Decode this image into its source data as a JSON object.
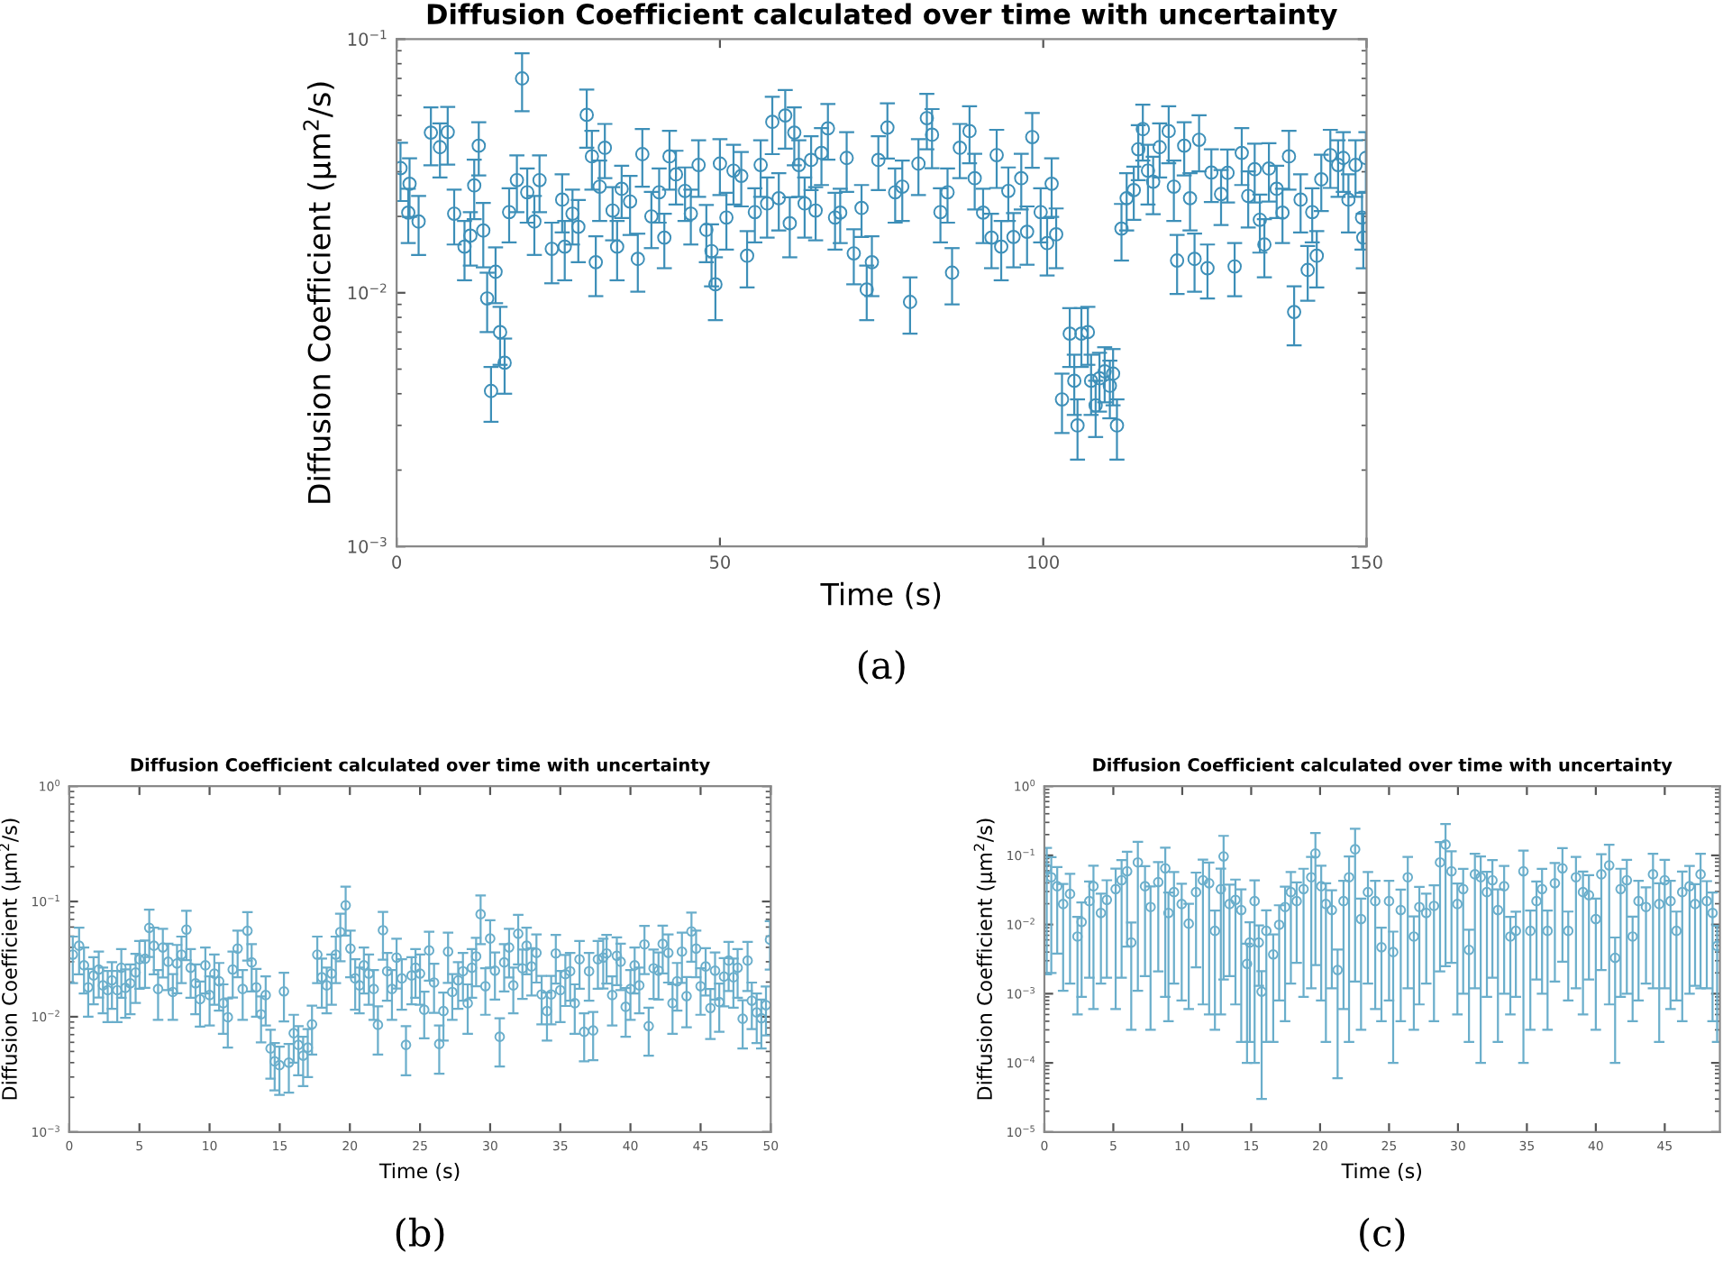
{
  "chart_data": [
    {
      "type": "scatter",
      "title": "Diffusion Coefficient calculated over time with uncertainty",
      "xlabel": "Time (s)",
      "ylabel": "Diffusion Coefficient (μm$^{2}$/s)",
      "log": "y",
      "marker": "circle",
      "xlim": [
        0,
        150
      ],
      "xticks": [
        0,
        50,
        100,
        150
      ],
      "ylim": [
        0.001,
        0.1
      ],
      "yticks": [
        {
          "value": 0.001,
          "label": "10$^{−3}$"
        },
        {
          "value": 0.01,
          "label": "10$^{−2}$"
        },
        {
          "value": 0.1,
          "label": "10$^{−1}$"
        }
      ],
      "annotations": [
        "(a)"
      ],
      "series": [
        {
          "color": "#3d8fb8",
          "x": [
            0.6,
            1.8,
            2.0,
            3.4,
            5.3,
            6.7,
            7.9,
            8.9,
            10.5,
            11.4,
            12.0,
            12.7,
            13.4,
            14.0,
            14.6,
            15.3,
            16.0,
            16.7,
            17.4,
            18.6,
            19.4,
            20.2,
            21.3,
            22.1,
            24.0,
            25.6,
            26.0,
            27.2,
            28.1,
            29.4,
            30.2,
            30.8,
            31.4,
            32.2,
            33.4,
            34.1,
            34.8,
            36.1,
            37.3,
            38.0,
            39.4,
            40.6,
            41.4,
            42.2,
            43.2,
            44.6,
            45.5,
            46.7,
            47.9,
            48.7,
            49.3,
            50.0,
            51.0,
            52.1,
            53.3,
            54.2,
            55.4,
            56.3,
            57.3,
            58.1,
            59.1,
            60.1,
            60.8,
            61.5,
            62.2,
            63.1,
            64.1,
            64.8,
            65.7,
            66.7,
            67.8,
            68.6,
            69.6,
            70.7,
            71.9,
            72.7,
            73.5,
            74.5,
            75.9,
            77.1,
            78.2,
            79.4,
            80.7,
            82.0,
            82.8,
            84.1,
            85.2,
            85.9,
            87.1,
            88.6,
            89.4,
            90.7,
            92.0,
            92.8,
            93.5,
            94.6,
            95.4,
            96.6,
            97.5,
            98.3,
            99.6,
            100.6,
            101.3,
            102.0,
            102.9,
            104.1,
            104.8,
            105.3,
            105.9,
            106.9,
            107.4,
            108.1,
            108.7,
            109.5,
            110.3,
            110.8,
            111.4,
            112.1,
            112.9,
            114.0,
            114.7,
            115.4,
            116.2,
            117.0,
            118.0,
            119.4,
            120.2,
            120.7,
            121.8,
            122.7,
            123.4,
            124.1,
            125.4,
            126.0,
            127.5,
            128.5,
            129.6,
            130.7,
            131.7,
            132.7,
            133.5,
            134.2,
            134.9,
            136.1,
            137.0,
            138.0,
            138.8,
            139.8,
            140.9,
            141.6,
            142.3,
            143.0,
            144.4,
            145.6,
            146.4,
            147.2,
            148.3,
            149.3,
            149.5,
            149.9
          ],
          "values": [
            0.031,
            0.0207,
            0.0269,
            0.0191,
            0.0428,
            0.0375,
            0.043,
            0.0205,
            0.0152,
            0.0168,
            0.0265,
            0.038,
            0.0176,
            0.0095,
            0.0041,
            0.0121,
            0.007,
            0.0053,
            0.0208,
            0.0278,
            0.07,
            0.0249,
            0.0191,
            0.0278,
            0.0149,
            0.0233,
            0.0152,
            0.0205,
            0.0182,
            0.0503,
            0.0345,
            0.0132,
            0.0262,
            0.0373,
            0.0211,
            0.0152,
            0.0257,
            0.0229,
            0.0136,
            0.0352,
            0.02,
            0.0249,
            0.0165,
            0.0345,
            0.0293,
            0.0252,
            0.0205,
            0.0319,
            0.0177,
            0.0146,
            0.0108,
            0.0323,
            0.0198,
            0.0303,
            0.0289,
            0.014,
            0.0208,
            0.0319,
            0.0225,
            0.0472,
            0.0236,
            0.05,
            0.0188,
            0.0428,
            0.0319,
            0.0225,
            0.0334,
            0.0211,
            0.0356,
            0.0445,
            0.0198,
            0.0207,
            0.034,
            0.0143,
            0.0216,
            0.0103,
            0.0132,
            0.0334,
            0.0448,
            0.0249,
            0.0262,
            0.0092,
            0.0323,
            0.0488,
            0.042,
            0.0208,
            0.0249,
            0.012,
            0.0373,
            0.0434,
            0.0283,
            0.0207,
            0.0165,
            0.0349,
            0.0152,
            0.0252,
            0.0166,
            0.0283,
            0.0174,
            0.0411,
            0.0208,
            0.0157,
            0.0269,
            0.017,
            0.0038,
            0.0069,
            0.0045,
            0.003,
            0.0069,
            0.007,
            0.0045,
            0.0036,
            0.0046,
            0.0049,
            0.0043,
            0.0048,
            0.003,
            0.0179,
            0.0236,
            0.0254,
            0.0368,
            0.0442,
            0.0303,
            0.0274,
            0.0375,
            0.0434,
            0.0262,
            0.0134,
            0.038,
            0.0236,
            0.0136,
            0.0401,
            0.0125,
            0.0298,
            0.0245,
            0.0297,
            0.0127,
            0.0356,
            0.0241,
            0.0307,
            0.0194,
            0.0155,
            0.0309,
            0.0257,
            0.0207,
            0.0345,
            0.0084,
            0.0233,
            0.0123,
            0.0208,
            0.014,
            0.028,
            0.0349,
            0.0319,
            0.034,
            0.0233,
            0.0319,
            0.0198,
            0.0165,
            0.034
          ],
          "errors": [
            0.008,
            0.005,
            0.007,
            0.005,
            0.011,
            0.009,
            0.011,
            0.005,
            0.004,
            0.004,
            0.007,
            0.009,
            0.005,
            0.0025,
            0.001,
            0.003,
            0.0018,
            0.0013,
            0.005,
            0.007,
            0.018,
            0.006,
            0.005,
            0.007,
            0.004,
            0.006,
            0.004,
            0.005,
            0.005,
            0.013,
            0.009,
            0.0035,
            0.007,
            0.009,
            0.005,
            0.004,
            0.006,
            0.006,
            0.0035,
            0.009,
            0.005,
            0.006,
            0.004,
            0.009,
            0.007,
            0.006,
            0.005,
            0.008,
            0.0045,
            0.004,
            0.003,
            0.008,
            0.005,
            0.008,
            0.007,
            0.0035,
            0.005,
            0.008,
            0.006,
            0.012,
            0.006,
            0.013,
            0.005,
            0.011,
            0.008,
            0.006,
            0.008,
            0.005,
            0.009,
            0.011,
            0.005,
            0.005,
            0.009,
            0.0035,
            0.005,
            0.0025,
            0.0035,
            0.008,
            0.011,
            0.006,
            0.007,
            0.0023,
            0.008,
            0.012,
            0.011,
            0.005,
            0.006,
            0.003,
            0.009,
            0.011,
            0.007,
            0.005,
            0.004,
            0.009,
            0.004,
            0.006,
            0.004,
            0.007,
            0.0045,
            0.01,
            0.005,
            0.004,
            0.007,
            0.0045,
            0.001,
            0.0018,
            0.0012,
            0.0008,
            0.0018,
            0.0018,
            0.0012,
            0.0009,
            0.0012,
            0.0012,
            0.0011,
            0.0012,
            0.0008,
            0.0045,
            0.006,
            0.006,
            0.009,
            0.011,
            0.008,
            0.007,
            0.009,
            0.011,
            0.007,
            0.0035,
            0.009,
            0.006,
            0.0035,
            0.01,
            0.003,
            0.007,
            0.006,
            0.007,
            0.003,
            0.009,
            0.006,
            0.008,
            0.005,
            0.004,
            0.008,
            0.006,
            0.005,
            0.009,
            0.0022,
            0.006,
            0.003,
            0.005,
            0.0035,
            0.007,
            0.009,
            0.008,
            0.009,
            0.006,
            0.008,
            0.005,
            0.004,
            0.009
          ]
        }
      ]
    },
    {
      "type": "scatter",
      "title": "Diffusion Coefficient calculated over time with uncertainty",
      "xlabel": "Time (s)",
      "ylabel": "Diffusion Coefficient (μm$^{2}$/s)",
      "log": "y",
      "marker": "circle",
      "xlim": [
        0,
        50
      ],
      "xticks": [
        0,
        5,
        10,
        15,
        20,
        25,
        30,
        35,
        40,
        45,
        50
      ],
      "ylim": [
        0.001,
        1
      ],
      "yticks": [
        {
          "value": 0.001,
          "label": "10$^{−3}$"
        },
        {
          "value": 0.01,
          "label": "10$^{−2}$"
        },
        {
          "value": 0.1,
          "label": "10$^{−1}$"
        },
        {
          "value": 1,
          "label": "10$^{0}$"
        }
      ],
      "annotations": [
        "(b)"
      ],
      "series": [
        {
          "color": "#6aaecb",
          "x": [
            0.25,
            0.7,
            1.05,
            1.35,
            1.73,
            2.1,
            2.4,
            2.74,
            3.04,
            3.42,
            3.71,
            4.0,
            4.35,
            4.73,
            5.0,
            5.4,
            5.7,
            6.03,
            6.33,
            6.67,
            7.05,
            7.38,
            7.68,
            8.0,
            8.35,
            8.65,
            9.0,
            9.32,
            9.7,
            10.0,
            10.34,
            10.68,
            10.97,
            11.3,
            11.65,
            12.0,
            12.36,
            12.7,
            13.0,
            13.33,
            13.67,
            14.0,
            14.35,
            14.64,
            14.98,
            15.3,
            15.65,
            16.0,
            16.33,
            16.67,
            17.0,
            17.3,
            17.68,
            18.0,
            18.35,
            18.7,
            19.0,
            19.32,
            19.7,
            20.04,
            20.38,
            20.68,
            21.0,
            21.35,
            21.7,
            22.0,
            22.36,
            22.66,
            23.0,
            23.33,
            23.7,
            24.0,
            24.4,
            24.68,
            25.0,
            25.3,
            25.65,
            26.0,
            26.37,
            26.67,
            27.0,
            27.3,
            27.72,
            28.06,
            28.4,
            28.7,
            29.0,
            29.32,
            29.66,
            30.0,
            30.34,
            30.68,
            31.0,
            31.35,
            31.65,
            32.0,
            32.3,
            32.6,
            32.95,
            33.3,
            33.67,
            34.05,
            34.35,
            34.68,
            35.0,
            35.36,
            35.7,
            36.03,
            36.37,
            36.7,
            37.05,
            37.34,
            37.68,
            38.06,
            38.3,
            38.7,
            39.03,
            39.3,
            39.66,
            40.0,
            40.3,
            40.63,
            41.0,
            41.3,
            41.65,
            42.0,
            42.3,
            42.7,
            43.0,
            43.33,
            43.67,
            44.0,
            44.35,
            44.68,
            45.0,
            45.36,
            45.7,
            46.03,
            46.33,
            46.67,
            47.0,
            47.34,
            47.64,
            48.0,
            48.35,
            48.65,
            49.0,
            49.33,
            49.66,
            49.95
          ],
          "values": [
            0.0346,
            0.0413,
            0.0279,
            0.018,
            0.0228,
            0.0257,
            0.0187,
            0.017,
            0.0207,
            0.017,
            0.0266,
            0.0178,
            0.0195,
            0.0242,
            0.0315,
            0.0318,
            0.059,
            0.0413,
            0.0174,
            0.0399,
            0.03,
            0.0164,
            0.029,
            0.0346,
            0.057,
            0.0266,
            0.0195,
            0.0142,
            0.0279,
            0.0154,
            0.0237,
            0.0203,
            0.0131,
            0.0099,
            0.0257,
            0.039,
            0.0174,
            0.0557,
            0.0296,
            0.018,
            0.0105,
            0.0154,
            0.0053,
            0.0041,
            0.0038,
            0.0166,
            0.004,
            0.0072,
            0.0057,
            0.0046,
            0.0054,
            0.0086,
            0.0346,
            0.022,
            0.0187,
            0.0237,
            0.0346,
            0.0543,
            0.0927,
            0.039,
            0.0215,
            0.0187,
            0.0279,
            0.0237,
            0.0174,
            0.0085,
            0.0563,
            0.0248,
            0.0174,
            0.0326,
            0.0215,
            0.0057,
            0.0228,
            0.0266,
            0.0237,
            0.0115,
            0.0376,
            0.0198,
            0.0058,
            0.0112,
            0.0367,
            0.0164,
            0.0207,
            0.0248,
            0.0131,
            0.0266,
            0.0334,
            0.0776,
            0.0184,
            0.0477,
            0.0251,
            0.0067,
            0.0296,
            0.0399,
            0.0187,
            0.0525,
            0.0263,
            0.0413,
            0.0273,
            0.0358,
            0.0156,
            0.0112,
            0.0156,
            0.0354,
            0.017,
            0.0234,
            0.0248,
            0.0131,
            0.0315,
            0.0074,
            0.0248,
            0.0076,
            0.0315,
            0.0326,
            0.0354,
            0.0154,
            0.0338,
            0.03,
            0.0122,
            0.0174,
            0.0279,
            0.0187,
            0.0424,
            0.0083,
            0.0263,
            0.0251,
            0.0428,
            0.0358,
            0.0131,
            0.0203,
            0.0367,
            0.0151,
            0.055,
            0.039,
            0.0184,
            0.0273,
            0.0119,
            0.0251,
            0.0134,
            0.0223,
            0.0307,
            0.022,
            0.0266,
            0.0096,
            0.0307,
            0.0138,
            0.0109,
            0.0097,
            0.0126,
            0.0466
          ],
          "errors": [
            0.015,
            0.018,
            0.012,
            0.008,
            0.01,
            0.011,
            0.008,
            0.008,
            0.009,
            0.008,
            0.012,
            0.008,
            0.009,
            0.011,
            0.014,
            0.014,
            0.026,
            0.018,
            0.008,
            0.018,
            0.013,
            0.007,
            0.013,
            0.015,
            0.026,
            0.012,
            0.009,
            0.006,
            0.012,
            0.007,
            0.011,
            0.009,
            0.006,
            0.0045,
            0.011,
            0.017,
            0.008,
            0.025,
            0.013,
            0.008,
            0.0045,
            0.007,
            0.0024,
            0.0018,
            0.0017,
            0.0075,
            0.0018,
            0.0032,
            0.0026,
            0.0021,
            0.0024,
            0.0039,
            0.015,
            0.01,
            0.008,
            0.011,
            0.015,
            0.024,
            0.042,
            0.017,
            0.01,
            0.008,
            0.012,
            0.011,
            0.008,
            0.0038,
            0.025,
            0.011,
            0.008,
            0.015,
            0.01,
            0.0026,
            0.01,
            0.012,
            0.011,
            0.005,
            0.017,
            0.009,
            0.0026,
            0.005,
            0.017,
            0.007,
            0.009,
            0.011,
            0.006,
            0.012,
            0.015,
            0.035,
            0.008,
            0.021,
            0.011,
            0.003,
            0.013,
            0.018,
            0.008,
            0.024,
            0.012,
            0.018,
            0.012,
            0.016,
            0.007,
            0.005,
            0.007,
            0.016,
            0.008,
            0.011,
            0.011,
            0.006,
            0.014,
            0.0033,
            0.011,
            0.0034,
            0.014,
            0.015,
            0.016,
            0.007,
            0.015,
            0.013,
            0.0055,
            0.008,
            0.012,
            0.008,
            0.019,
            0.0037,
            0.012,
            0.011,
            0.019,
            0.016,
            0.006,
            0.009,
            0.017,
            0.007,
            0.025,
            0.017,
            0.008,
            0.012,
            0.0055,
            0.011,
            0.006,
            0.01,
            0.014,
            0.01,
            0.012,
            0.0043,
            0.014,
            0.006,
            0.005,
            0.0044,
            0.0057,
            0.021
          ]
        }
      ]
    },
    {
      "type": "scatter",
      "title": "Diffusion Coefficient calculated over time with uncertainty",
      "xlabel": "Time (s)",
      "ylabel": "Diffusion Coefficient (μm$^{2}$/s)",
      "log": "y",
      "marker": "circle",
      "xlim": [
        0,
        49
      ],
      "xticks": [
        0,
        5,
        10,
        15,
        20,
        25,
        30,
        35,
        40,
        45
      ],
      "ylim": [
        1e-05,
        1
      ],
      "yticks": [
        {
          "value": 1e-05,
          "label": "10$^{−5}$"
        },
        {
          "value": 0.0001,
          "label": "10$^{−4}$"
        },
        {
          "value": 0.001,
          "label": "10$^{−3}$"
        },
        {
          "value": 0.01,
          "label": "10$^{−2}$"
        },
        {
          "value": 0.1,
          "label": "10$^{−1}$"
        },
        {
          "value": 1,
          "label": "10$^{0}$"
        }
      ],
      "annotations": [
        "(c)"
      ],
      "series": [
        {
          "color": "#6aaecb",
          "x": [
            0.17,
            0.5,
            0.93,
            1.36,
            1.86,
            2.4,
            2.7,
            3.26,
            3.56,
            4.1,
            4.53,
            5.17,
            5.6,
            6.0,
            6.3,
            6.78,
            7.3,
            7.7,
            8.26,
            8.77,
            9.0,
            9.4,
            9.96,
            10.47,
            11.0,
            11.5,
            11.95,
            12.37,
            12.8,
            13.0,
            13.43,
            13.86,
            14.28,
            14.7,
            14.9,
            15.25,
            15.55,
            15.76,
            16.1,
            16.6,
            17.03,
            17.46,
            17.88,
            18.3,
            18.8,
            19.36,
            19.66,
            20.08,
            20.42,
            20.85,
            21.27,
            21.7,
            22.1,
            22.54,
            22.97,
            23.47,
            24.0,
            24.45,
            25.0,
            25.3,
            25.85,
            26.36,
            26.8,
            27.2,
            27.7,
            28.26,
            28.7,
            29.1,
            29.53,
            29.96,
            30.38,
            30.8,
            31.23,
            31.65,
            32.1,
            32.5,
            32.9,
            33.35,
            33.8,
            34.2,
            34.75,
            35.25,
            35.7,
            36.1,
            36.5,
            37.03,
            37.58,
            38.0,
            38.56,
            39.07,
            39.5,
            40.0,
            40.4,
            40.97,
            41.4,
            41.8,
            42.25,
            42.67,
            43.1,
            43.64,
            44.15,
            44.6,
            45.0,
            45.42,
            45.85,
            46.27,
            46.8,
            47.2,
            47.6,
            48.05,
            48.47,
            48.8
          ],
          "values": [
            0.0649,
            0.0482,
            0.0358,
            0.0198,
            0.0277,
            0.0067,
            0.0109,
            0.0218,
            0.0358,
            0.0147,
            0.0227,
            0.0325,
            0.0437,
            0.0588,
            0.0055,
            0.0791,
            0.0358,
            0.0179,
            0.0411,
            0.0649,
            0.0147,
            0.0294,
            0.0198,
            0.0103,
            0.0294,
            0.0437,
            0.0395,
            0.0081,
            0.0325,
            0.0966,
            0.0198,
            0.0227,
            0.0162,
            0.0027,
            0.0055,
            0.0218,
            0.0055,
            0.00107,
            0.0081,
            0.0037,
            0.0099,
            0.0179,
            0.0294,
            0.0218,
            0.0325,
            0.0482,
            0.1066,
            0.0358,
            0.0198,
            0.0162,
            0.0022,
            0.0218,
            0.0482,
            0.1225,
            0.012,
            0.0294,
            0.0218,
            0.0047,
            0.0218,
            0.004,
            0.0162,
            0.0482,
            0.0067,
            0.0179,
            0.0147,
            0.0186,
            0.0791,
            0.1435,
            0.0588,
            0.0198,
            0.0325,
            0.0043,
            0.0532,
            0.0482,
            0.0294,
            0.0437,
            0.0162,
            0.0358,
            0.0067,
            0.0081,
            0.0588,
            0.0081,
            0.0218,
            0.0325,
            0.0081,
            0.0395,
            0.0649,
            0.0081,
            0.0482,
            0.0294,
            0.0266,
            0.012,
            0.0532,
            0.0717,
            0.0033,
            0.0325,
            0.0437,
            0.0067,
            0.0218,
            0.0179,
            0.0532,
            0.0198,
            0.0437,
            0.0218,
            0.0081,
            0.0294,
            0.0358,
            0.0198,
            0.0532,
            0.0218,
            0.0147,
            0.0049
          ],
          "errors": [
            0.063,
            0.0462,
            0.032,
            0.0187,
            0.0263,
            0.0062,
            0.01,
            0.0201,
            0.0352,
            0.0133,
            0.021,
            0.0319,
            0.042,
            0.054,
            0.0052,
            0.078,
            0.034,
            0.0176,
            0.039,
            0.064,
            0.0143,
            0.028,
            0.019,
            0.0097,
            0.027,
            0.043,
            0.039,
            0.0078,
            0.032,
            0.095,
            0.018,
            0.022,
            0.016,
            0.0026,
            0.0053,
            0.0217,
            0.0042,
            0.00104,
            0.0079,
            0.0035,
            0.0091,
            0.0175,
            0.028,
            0.019,
            0.0316,
            0.047,
            0.104,
            0.035,
            0.0196,
            0.015,
            0.00214,
            0.0212,
            0.048,
            0.121,
            0.0117,
            0.028,
            0.0212,
            0.0043,
            0.021,
            0.0039,
            0.0158,
            0.047,
            0.0064,
            0.0172,
            0.0133,
            0.0182,
            0.077,
            0.141,
            0.056,
            0.0193,
            0.0315,
            0.0041,
            0.052,
            0.0481,
            0.0285,
            0.042,
            0.016,
            0.0348,
            0.0062,
            0.0072,
            0.0587,
            0.0078,
            0.0202,
            0.0315,
            0.0078,
            0.038,
            0.062,
            0.0073,
            0.047,
            0.0289,
            0.025,
            0.0117,
            0.051,
            0.071,
            0.0032,
            0.0316,
            0.0427,
            0.0063,
            0.021,
            0.0165,
            0.052,
            0.0196,
            0.0425,
            0.0212,
            0.0073,
            0.029,
            0.0348,
            0.0185,
            0.052,
            0.0206,
            0.0143,
            0.0047
          ]
        }
      ]
    }
  ]
}
